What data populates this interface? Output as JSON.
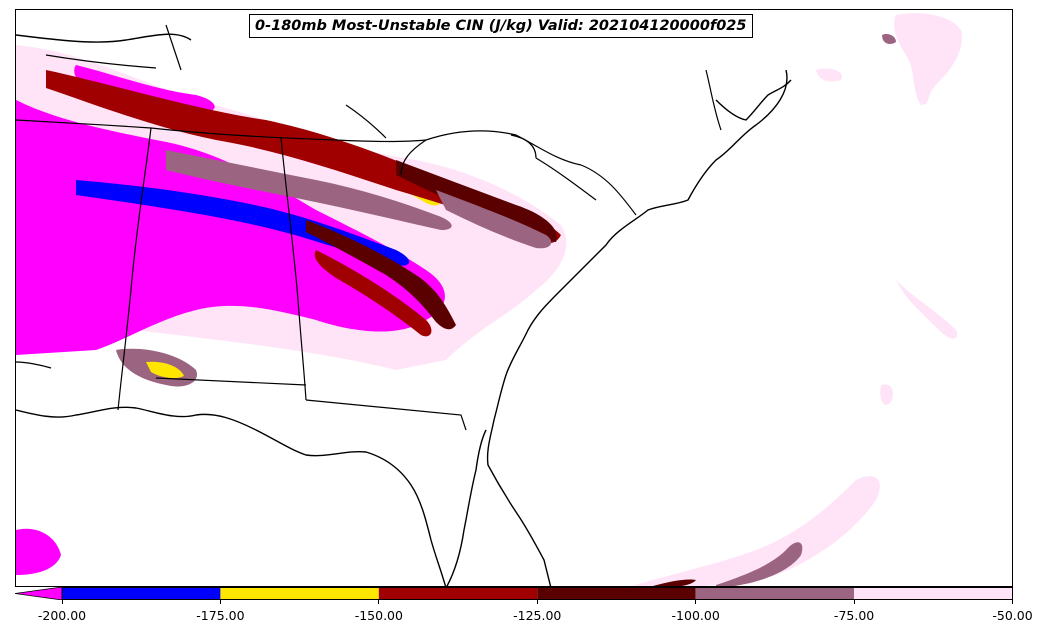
{
  "title": "0-180mb Most-Unstable CIN (J/kg) Valid: 202104120000f025",
  "colorbar": {
    "extend": "min",
    "ticks": [
      "-200.00",
      "-175.00",
      "-150.00",
      "-125.00",
      "-100.00",
      "-75.00",
      "-50.00"
    ],
    "bins": [
      {
        "from": -200,
        "to": -175,
        "color": "#0000ff"
      },
      {
        "from": -175,
        "to": -150,
        "color": "#ffe600"
      },
      {
        "from": -150,
        "to": -125,
        "color": "#a00000"
      },
      {
        "from": -125,
        "to": -100,
        "color": "#5a0000"
      },
      {
        "from": -100,
        "to": -75,
        "color": "#9b6480"
      },
      {
        "from": -75,
        "to": -50,
        "color": "#ffe4f8"
      }
    ],
    "under_color": "#ff00ff"
  },
  "colors": {
    "magenta": "#ff00ff",
    "blue": "#0000ff",
    "yellow": "#ffe600",
    "red": "#a00000",
    "darkred": "#5a0000",
    "mauve": "#9b6480",
    "pink": "#ffe4f8",
    "boundary": "#000000"
  }
}
